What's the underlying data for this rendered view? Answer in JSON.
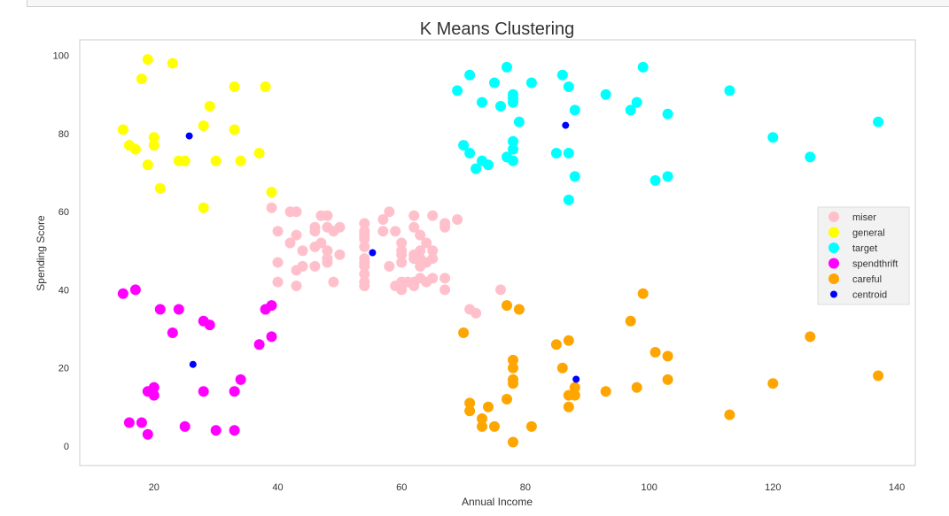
{
  "chart_data": {
    "type": "scatter",
    "title": "K Means Clustering",
    "xlabel": "Annual Income",
    "ylabel": "Spending Score",
    "xlim": [
      8,
      143
    ],
    "ylim": [
      -5,
      104
    ],
    "xticks": [
      20,
      40,
      60,
      80,
      100,
      120,
      140
    ],
    "yticks": [
      0,
      20,
      40,
      60,
      80,
      100
    ],
    "grid": false,
    "legend_position": "right",
    "series": [
      {
        "name": "miser",
        "color": "#FFC0CB",
        "points": [
          [
            39,
            61
          ],
          [
            40,
            55
          ],
          [
            40,
            47
          ],
          [
            40,
            42
          ],
          [
            42,
            60
          ],
          [
            42,
            52
          ],
          [
            43,
            60
          ],
          [
            43,
            54
          ],
          [
            43,
            45
          ],
          [
            43,
            41
          ],
          [
            44,
            50
          ],
          [
            44,
            46
          ],
          [
            46,
            56
          ],
          [
            46,
            55
          ],
          [
            46,
            51
          ],
          [
            46,
            46
          ],
          [
            47,
            59
          ],
          [
            47,
            52
          ],
          [
            48,
            59
          ],
          [
            48,
            56
          ],
          [
            48,
            50
          ],
          [
            48,
            48
          ],
          [
            48,
            47
          ],
          [
            49,
            55
          ],
          [
            49,
            42
          ],
          [
            50,
            56
          ],
          [
            50,
            49
          ],
          [
            54,
            57
          ],
          [
            54,
            55
          ],
          [
            54,
            54
          ],
          [
            54,
            53
          ],
          [
            54,
            51
          ],
          [
            54,
            48
          ],
          [
            54,
            47
          ],
          [
            54,
            46
          ],
          [
            54,
            44
          ],
          [
            54,
            42
          ],
          [
            54,
            41
          ],
          [
            57,
            58
          ],
          [
            57,
            55
          ],
          [
            58,
            60
          ],
          [
            58,
            46
          ],
          [
            59,
            55
          ],
          [
            59,
            41
          ],
          [
            60,
            52
          ],
          [
            60,
            50
          ],
          [
            60,
            49
          ],
          [
            60,
            47
          ],
          [
            60,
            42
          ],
          [
            60,
            40
          ],
          [
            61,
            42
          ],
          [
            62,
            59
          ],
          [
            62,
            56
          ],
          [
            62,
            49
          ],
          [
            62,
            48
          ],
          [
            62,
            42
          ],
          [
            62,
            41
          ],
          [
            63,
            54
          ],
          [
            63,
            50
          ],
          [
            63,
            48
          ],
          [
            63,
            46
          ],
          [
            63,
            43
          ],
          [
            64,
            52
          ],
          [
            64,
            47
          ],
          [
            64,
            42
          ],
          [
            65,
            59
          ],
          [
            65,
            50
          ],
          [
            65,
            48
          ],
          [
            65,
            43
          ],
          [
            67,
            57
          ],
          [
            67,
            56
          ],
          [
            67,
            43
          ],
          [
            67,
            40
          ],
          [
            69,
            58
          ],
          [
            71,
            35
          ],
          [
            72,
            34
          ],
          [
            76,
            40
          ]
        ]
      },
      {
        "name": "general",
        "color": "#FFFF00",
        "points": [
          [
            15,
            81
          ],
          [
            16,
            77
          ],
          [
            17,
            76
          ],
          [
            18,
            94
          ],
          [
            19,
            99
          ],
          [
            19,
            72
          ],
          [
            20,
            79
          ],
          [
            20,
            77
          ],
          [
            21,
            66
          ],
          [
            23,
            98
          ],
          [
            24,
            73
          ],
          [
            25,
            73
          ],
          [
            28,
            82
          ],
          [
            28,
            61
          ],
          [
            29,
            87
          ],
          [
            30,
            73
          ],
          [
            33,
            92
          ],
          [
            33,
            81
          ],
          [
            34,
            73
          ],
          [
            37,
            75
          ],
          [
            38,
            92
          ],
          [
            39,
            65
          ]
        ]
      },
      {
        "name": "target",
        "color": "#00FFFF",
        "points": [
          [
            69,
            91
          ],
          [
            70,
            77
          ],
          [
            71,
            95
          ],
          [
            71,
            75
          ],
          [
            72,
            71
          ],
          [
            73,
            88
          ],
          [
            73,
            73
          ],
          [
            74,
            72
          ],
          [
            75,
            93
          ],
          [
            76,
            87
          ],
          [
            77,
            97
          ],
          [
            77,
            74
          ],
          [
            78,
            90
          ],
          [
            78,
            89
          ],
          [
            78,
            88
          ],
          [
            78,
            78
          ],
          [
            78,
            76
          ],
          [
            78,
            73
          ],
          [
            79,
            83
          ],
          [
            81,
            93
          ],
          [
            85,
            75
          ],
          [
            86,
            95
          ],
          [
            87,
            92
          ],
          [
            87,
            75
          ],
          [
            87,
            63
          ],
          [
            88,
            86
          ],
          [
            88,
            69
          ],
          [
            93,
            90
          ],
          [
            97,
            86
          ],
          [
            98,
            88
          ],
          [
            99,
            97
          ],
          [
            101,
            68
          ],
          [
            103,
            85
          ],
          [
            103,
            69
          ],
          [
            113,
            91
          ],
          [
            120,
            79
          ],
          [
            126,
            74
          ],
          [
            137,
            83
          ]
        ]
      },
      {
        "name": "spendthrift",
        "color": "#FF00FF",
        "points": [
          [
            15,
            39
          ],
          [
            16,
            6
          ],
          [
            17,
            40
          ],
          [
            18,
            6
          ],
          [
            19,
            14
          ],
          [
            19,
            3
          ],
          [
            20,
            15
          ],
          [
            20,
            13
          ],
          [
            21,
            35
          ],
          [
            23,
            29
          ],
          [
            24,
            35
          ],
          [
            25,
            5
          ],
          [
            28,
            32
          ],
          [
            28,
            14
          ],
          [
            29,
            31
          ],
          [
            30,
            4
          ],
          [
            33,
            14
          ],
          [
            33,
            4
          ],
          [
            34,
            17
          ],
          [
            37,
            26
          ],
          [
            38,
            35
          ],
          [
            39,
            36
          ],
          [
            39,
            28
          ]
        ]
      },
      {
        "name": "careful",
        "color": "#FFA500",
        "points": [
          [
            70,
            29
          ],
          [
            71,
            11
          ],
          [
            71,
            9
          ],
          [
            73,
            7
          ],
          [
            73,
            5
          ],
          [
            74,
            10
          ],
          [
            75,
            5
          ],
          [
            77,
            36
          ],
          [
            77,
            12
          ],
          [
            78,
            22
          ],
          [
            78,
            20
          ],
          [
            78,
            17
          ],
          [
            78,
            16
          ],
          [
            78,
            1
          ],
          [
            79,
            35
          ],
          [
            81,
            5
          ],
          [
            85,
            26
          ],
          [
            86,
            20
          ],
          [
            87,
            27
          ],
          [
            87,
            13
          ],
          [
            87,
            10
          ],
          [
            88,
            15
          ],
          [
            88,
            13
          ],
          [
            93,
            14
          ],
          [
            97,
            32
          ],
          [
            98,
            15
          ],
          [
            99,
            39
          ],
          [
            101,
            24
          ],
          [
            103,
            23
          ],
          [
            103,
            17
          ],
          [
            113,
            8
          ],
          [
            120,
            16
          ],
          [
            126,
            28
          ],
          [
            137,
            18
          ]
        ]
      },
      {
        "name": "centroid",
        "color": "#0000FF",
        "points": [
          [
            25.7,
            79.4
          ],
          [
            55.3,
            49.5
          ],
          [
            86.5,
            82.1
          ],
          [
            26.3,
            20.9
          ],
          [
            88.2,
            17.1
          ]
        ]
      }
    ]
  }
}
